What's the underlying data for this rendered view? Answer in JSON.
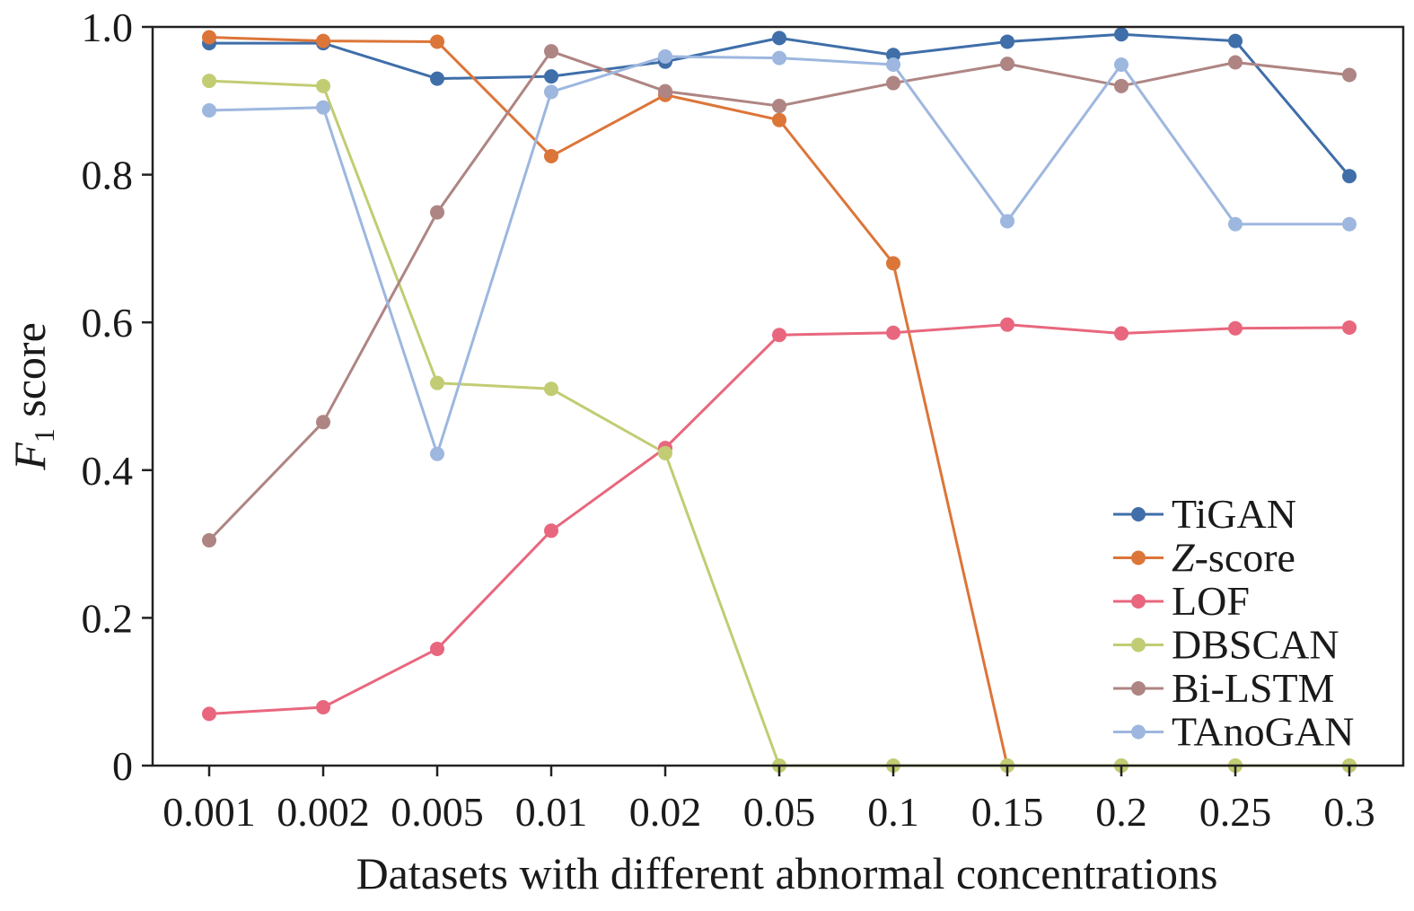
{
  "chart_data": {
    "type": "line",
    "xlabel": "Datasets with different abnormal concentrations",
    "ylabel": "F1 score",
    "ylabel_main": "F",
    "ylabel_sub": "1",
    "ylabel_rest": " score",
    "ylim": [
      0,
      1.0
    ],
    "yticks": [
      "0",
      "0.2",
      "0.4",
      "0.6",
      "0.8",
      "1.0"
    ],
    "yticks_values": [
      0,
      0.2,
      0.4,
      0.6,
      0.8,
      1.0
    ],
    "categories": [
      "0.001",
      "0.002",
      "0.005",
      "0.01",
      "0.02",
      "0.05",
      "0.1",
      "0.15",
      "0.2",
      "0.25",
      "0.3"
    ],
    "grid": false,
    "legend_position": "bottom-right",
    "series": [
      {
        "name": "TiGAN",
        "name_italic": "",
        "name_rest": "TiGAN",
        "color": "#3f6ea9",
        "values": [
          0.978,
          0.978,
          0.93,
          0.933,
          0.953,
          0.985,
          0.962,
          0.98,
          0.99,
          0.981,
          0.798
        ]
      },
      {
        "name": "Z-score",
        "name_italic": "Z",
        "name_rest": "-score",
        "color": "#dc7538",
        "values": [
          0.986,
          0.981,
          0.98,
          0.825,
          0.908,
          0.874,
          0.68,
          0.0,
          0.0,
          0.0,
          0.0
        ]
      },
      {
        "name": "LOF",
        "name_italic": "",
        "name_rest": "LOF",
        "color": "#e8677e",
        "values": [
          0.07,
          0.079,
          0.158,
          0.318,
          0.43,
          0.583,
          0.586,
          0.597,
          0.585,
          0.592,
          0.593
        ]
      },
      {
        "name": "DBSCAN",
        "name_italic": "",
        "name_rest": "DBSCAN",
        "color": "#c2cc73",
        "values": [
          0.927,
          0.92,
          0.518,
          0.51,
          0.423,
          0.0,
          0.0,
          0.0,
          0.0,
          0.0,
          0.0
        ]
      },
      {
        "name": "Bi-LSTM",
        "name_italic": "",
        "name_rest": "Bi-LSTM",
        "color": "#ae8583",
        "values": [
          0.305,
          0.465,
          0.749,
          0.967,
          0.913,
          0.893,
          0.924,
          0.95,
          0.92,
          0.952,
          0.935
        ]
      },
      {
        "name": "TAnoGAN",
        "name_italic": "",
        "name_rest": "TAnoGAN",
        "color": "#9db7df",
        "values": [
          0.887,
          0.891,
          0.422,
          0.912,
          0.96,
          0.958,
          0.949,
          0.737,
          0.949,
          0.733,
          0.733
        ]
      }
    ]
  }
}
